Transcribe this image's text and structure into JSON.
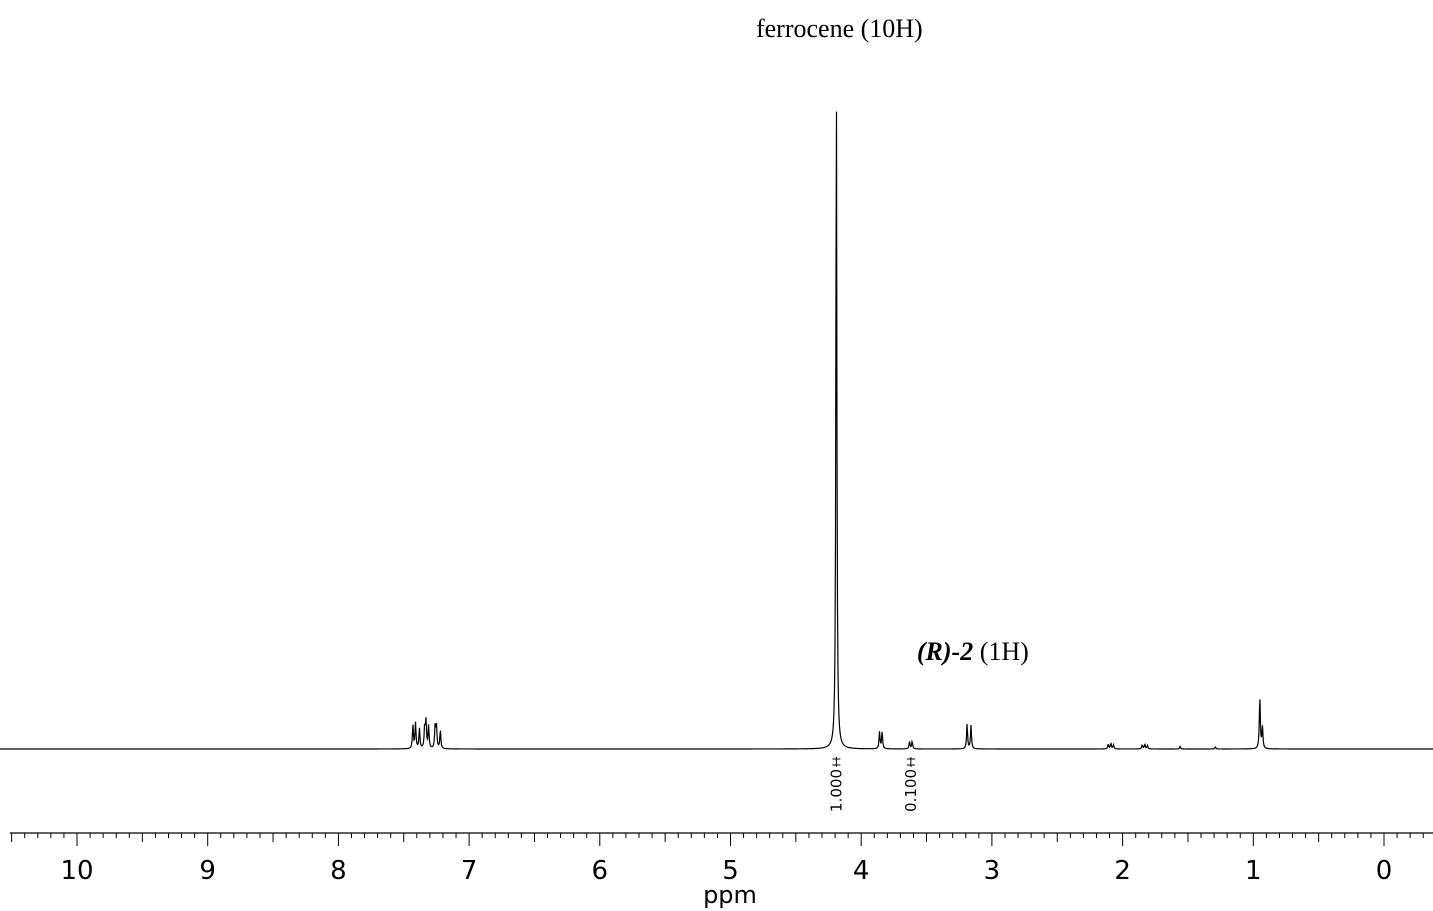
{
  "chart_data": {
    "type": "line",
    "xlabel": "ppm",
    "xlim": [
      10.5,
      -0.35
    ],
    "x_reversed": true,
    "x_ticks_major": [
      "10",
      "9",
      "8",
      "7",
      "6",
      "5",
      "4",
      "3",
      "2",
      "1",
      "0"
    ],
    "x_minor_step": 0.1,
    "y_axis_shown": false,
    "grid": false,
    "annotations": {
      "ferrocene": {
        "text": "ferrocene (10H)",
        "ppm": 4.19
      },
      "product": {
        "bold": "(R)-2",
        "rest": " (1H)",
        "ppm": 3.62
      }
    },
    "integrals": [
      {
        "ppm": 4.19,
        "value": "1.000"
      },
      {
        "ppm": 3.62,
        "value": "0.100"
      }
    ],
    "peaks": [
      {
        "ppm": 7.43,
        "height": 0.035
      },
      {
        "ppm": 7.41,
        "height": 0.038
      },
      {
        "ppm": 7.38,
        "height": 0.03
      },
      {
        "ppm": 7.34,
        "height": 0.032
      },
      {
        "ppm": 7.33,
        "height": 0.04
      },
      {
        "ppm": 7.31,
        "height": 0.034
      },
      {
        "ppm": 7.26,
        "height": 0.034
      },
      {
        "ppm": 7.25,
        "height": 0.033
      },
      {
        "ppm": 7.22,
        "height": 0.028
      },
      {
        "ppm": 4.19,
        "height": 1.0
      },
      {
        "ppm": 3.86,
        "height": 0.025
      },
      {
        "ppm": 3.84,
        "height": 0.025
      },
      {
        "ppm": 3.63,
        "height": 0.011
      },
      {
        "ppm": 3.61,
        "height": 0.011
      },
      {
        "ppm": 3.19,
        "height": 0.037
      },
      {
        "ppm": 3.16,
        "height": 0.035
      },
      {
        "ppm": 2.11,
        "height": 0.007
      },
      {
        "ppm": 2.09,
        "height": 0.008
      },
      {
        "ppm": 2.07,
        "height": 0.006
      },
      {
        "ppm": 1.85,
        "height": 0.006
      },
      {
        "ppm": 1.83,
        "height": 0.007
      },
      {
        "ppm": 1.81,
        "height": 0.005
      },
      {
        "ppm": 1.56,
        "height": 0.004
      },
      {
        "ppm": 1.29,
        "height": 0.003
      },
      {
        "ppm": 0.95,
        "height": 0.078
      },
      {
        "ppm": 0.93,
        "height": 0.032
      }
    ]
  }
}
